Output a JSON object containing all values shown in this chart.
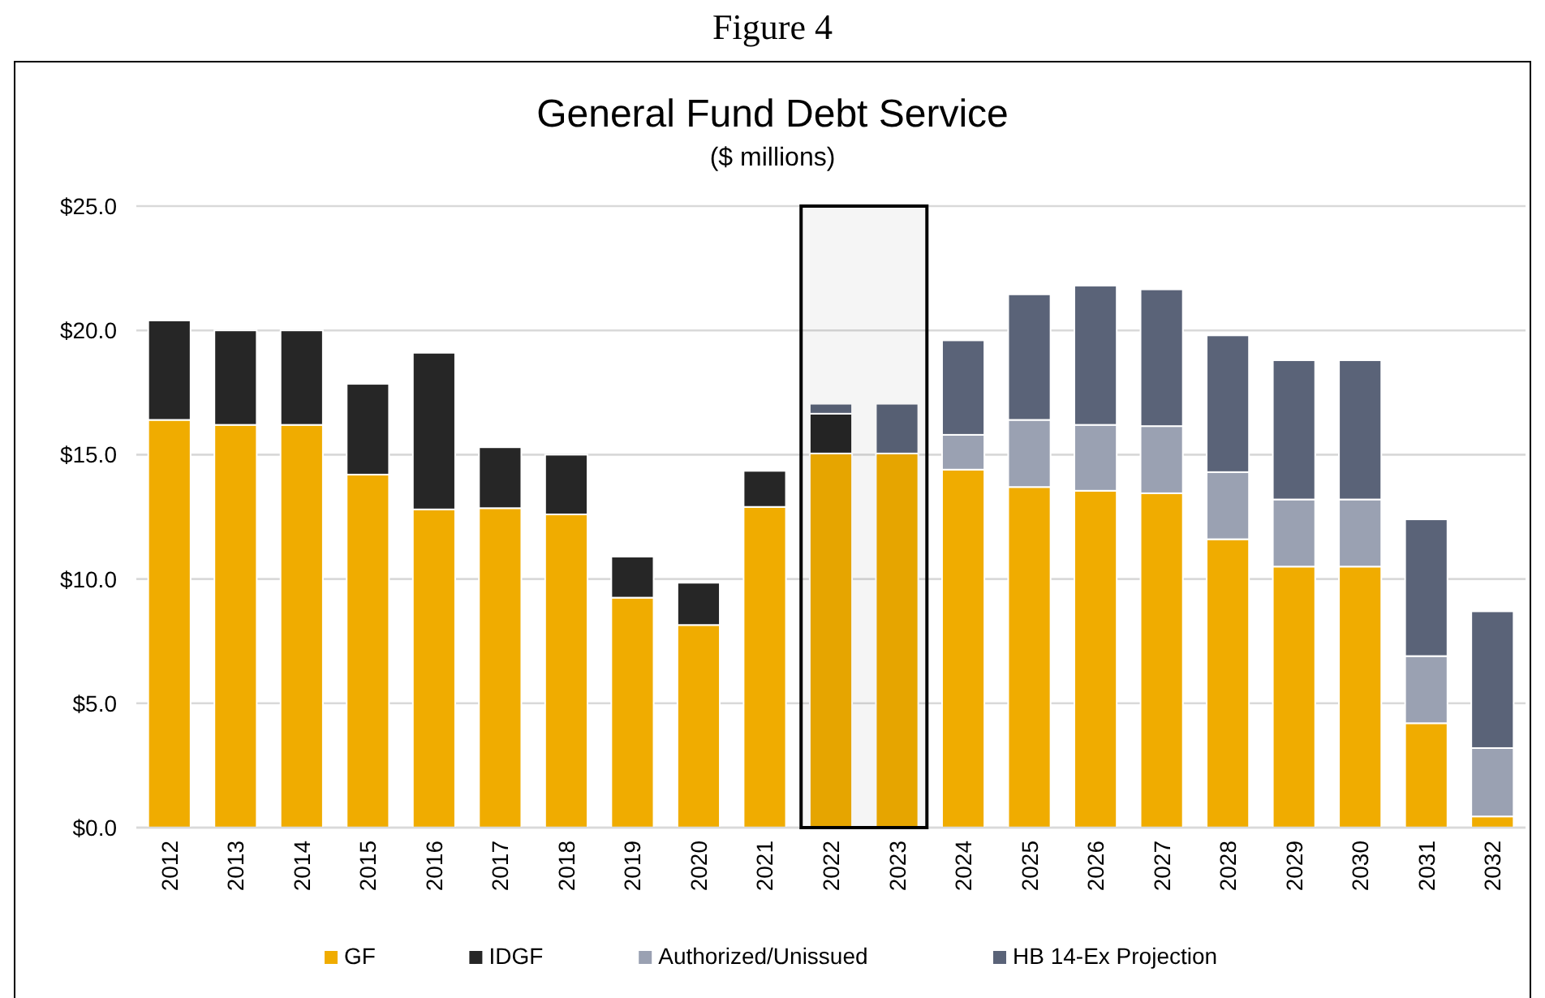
{
  "chart_data": {
    "type": "bar",
    "stacked": true,
    "title": "General Fund Debt Service",
    "subtitle": "($ millions)",
    "annotations": [
      "Figure 4"
    ],
    "categories": [
      "2012",
      "2013",
      "2014",
      "2015",
      "2016",
      "2017",
      "2018",
      "2019",
      "2020",
      "2021",
      "2022",
      "2023",
      "2024",
      "2025",
      "2026",
      "2027",
      "2028",
      "2029",
      "2030",
      "2031",
      "2032"
    ],
    "series": [
      {
        "name": "GF",
        "color": "#f0ac00",
        "values": [
          16.4,
          16.2,
          16.2,
          14.2,
          12.8,
          12.85,
          12.6,
          9.25,
          8.15,
          12.9,
          15.05,
          15.05,
          14.4,
          13.7,
          13.55,
          13.45,
          11.6,
          10.5,
          10.5,
          4.2,
          0.45
        ]
      },
      {
        "name": "IDGF",
        "color": "#262626",
        "values": [
          4.0,
          3.8,
          3.8,
          3.65,
          6.3,
          2.45,
          2.4,
          1.65,
          1.7,
          1.45,
          1.6,
          null,
          null,
          null,
          null,
          null,
          null,
          null,
          null,
          null,
          null
        ]
      },
      {
        "name": "Authorized/Unissued",
        "color": "#9aa1b2",
        "values": [
          null,
          null,
          null,
          null,
          null,
          null,
          null,
          null,
          null,
          null,
          null,
          null,
          1.4,
          2.7,
          2.65,
          2.7,
          2.7,
          2.7,
          2.7,
          2.7,
          2.75
        ]
      },
      {
        "name": "HB 14-Ex Projection",
        "color": "#5a6378",
        "values": [
          null,
          null,
          null,
          null,
          null,
          null,
          null,
          null,
          null,
          null,
          0.4,
          2.0,
          3.8,
          5.05,
          5.6,
          5.5,
          5.5,
          5.6,
          5.6,
          5.5,
          5.5
        ]
      }
    ],
    "ylim": [
      0,
      25
    ],
    "yticks": [
      {
        "value": 0,
        "label": "$0.0"
      },
      {
        "value": 5,
        "label": "$5.0"
      },
      {
        "value": 10,
        "label": "$10.0"
      },
      {
        "value": 15,
        "label": "$15.0"
      },
      {
        "value": 20,
        "label": "$20.0"
      },
      {
        "value": 25,
        "label": "$25.0"
      }
    ],
    "grid": "y",
    "legend": "bottom",
    "bands": [
      {
        "axis": "x",
        "from": "2022",
        "to": "2023",
        "color": "#000000"
      }
    ]
  }
}
